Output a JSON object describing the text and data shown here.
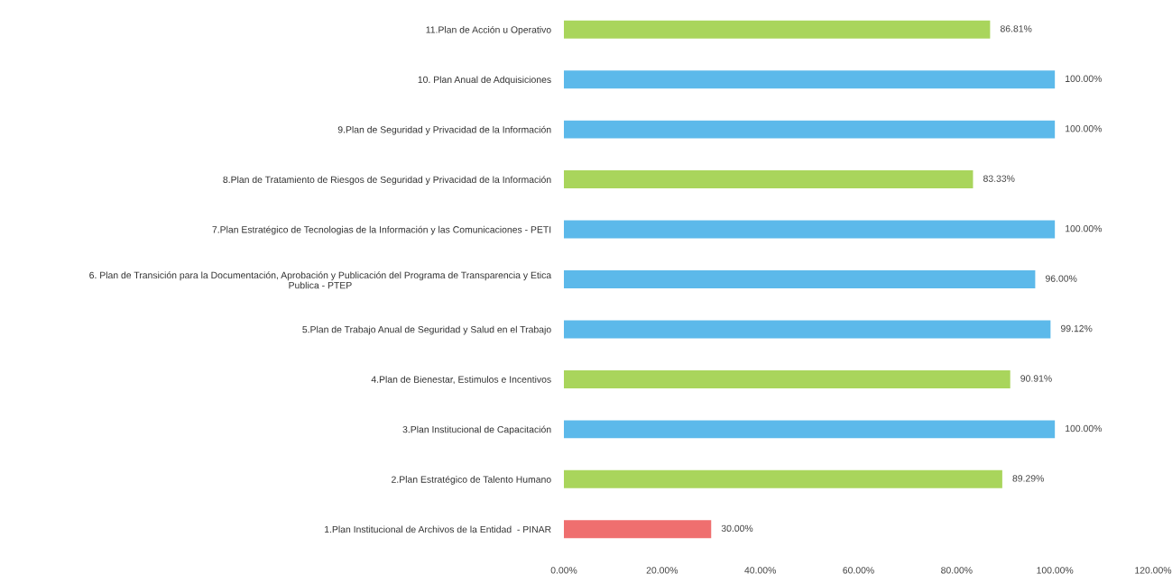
{
  "chart_data": {
    "type": "bar",
    "orientation": "horizontal",
    "categories": [
      "11.Plan de Acción u Operativo",
      "10. Plan Anual de Adquisiciones",
      "9.Plan de Seguridad y Privacidad de la Información",
      "8.Plan de Tratamiento de Riesgos de Seguridad y Privacidad de la Información",
      "7.Plan Estratégico de Tecnologias de la Información y las Comunicaciones - PETI",
      "6. Plan de Transición para la Documentación, Aprobación y Publicación del Programa de Transparencia y Etica\nPublica - PTEP",
      "5.Plan de Trabajo Anual de Seguridad y Salud en el Trabajo",
      "4.Plan de Bienestar, Estimulos e Incentivos",
      "3.Plan Institucional de Capacitación",
      "2.Plan Estratégico de Talento Humano",
      "1.Plan Institucional de Archivos de la Entidad  - PINAR"
    ],
    "values": [
      86.81,
      100.0,
      100.0,
      83.33,
      100.0,
      96.0,
      99.12,
      90.91,
      100.0,
      89.29,
      30.0
    ],
    "colors": [
      "#a9d55c",
      "#5cb9ea",
      "#5cb9ea",
      "#a9d55c",
      "#5cb9ea",
      "#5cb9ea",
      "#5cb9ea",
      "#a9d55c",
      "#5cb9ea",
      "#a9d55c",
      "#ef6f6f"
    ],
    "value_labels": [
      "86.81%",
      "100.00%",
      "100.00%",
      "83.33%",
      "100.00%",
      "96.00%",
      "99.12%",
      "90.91%",
      "100.00%",
      "89.29%",
      "30.00%"
    ],
    "xlim": [
      0,
      120
    ],
    "xticks": [
      {
        "value": 0,
        "label": "0.00%"
      },
      {
        "value": 20,
        "label": "20.00%"
      },
      {
        "value": 40,
        "label": "40.00%"
      },
      {
        "value": 60,
        "label": "60.00%"
      },
      {
        "value": 80,
        "label": "80.00%"
      },
      {
        "value": 100,
        "label": "100.00%"
      },
      {
        "value": 120,
        "label": "120.00%"
      }
    ],
    "grid": false
  }
}
